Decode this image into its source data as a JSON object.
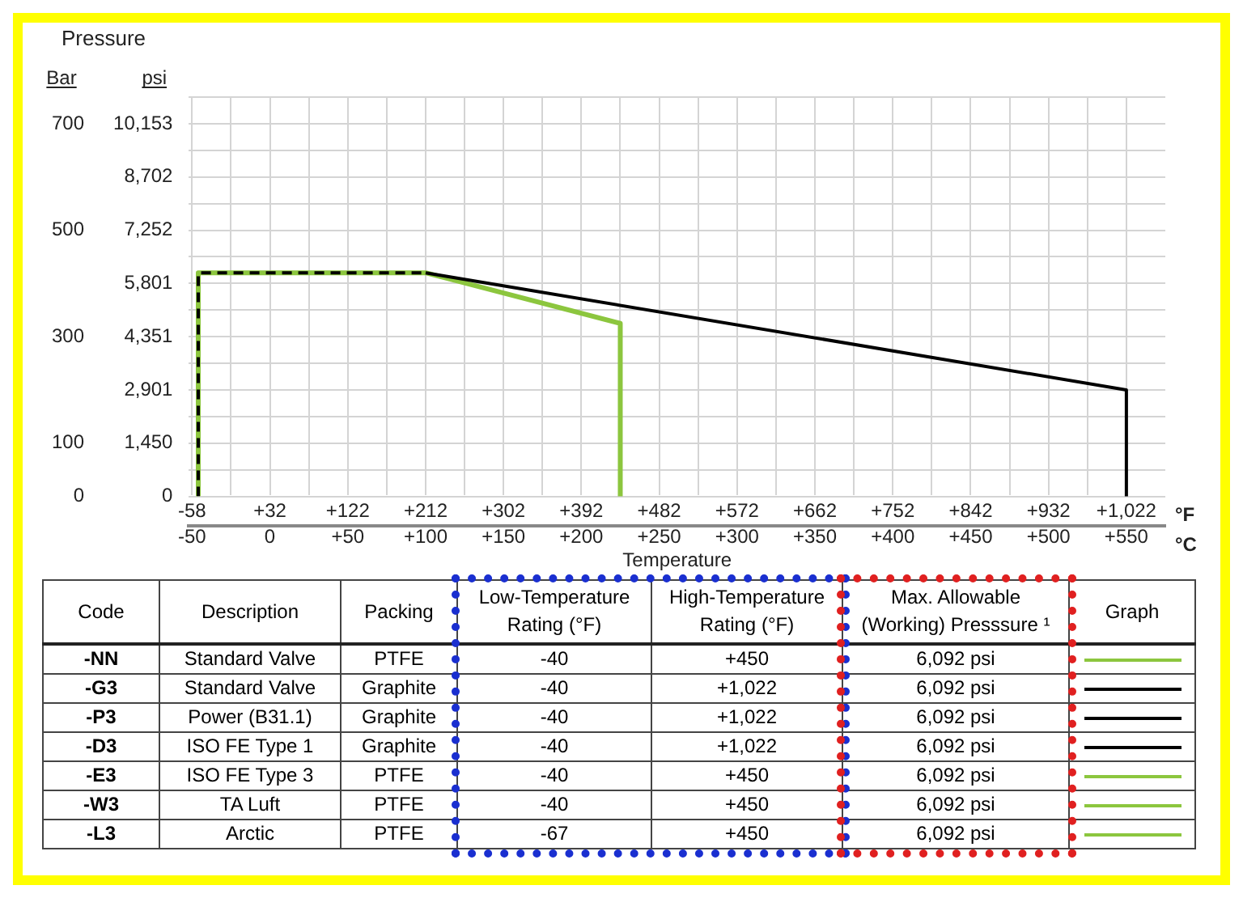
{
  "chart_data": [
    {
      "type": "line",
      "title": "Pressure",
      "ylabel": "Bar",
      "y2label": "psi",
      "xlabel": "Temperature",
      "series": [
        {
          "type": "line",
          "color": "#8cc63e",
          "line_style": "solid",
          "x": [
            -46,
            -46,
            100,
            225,
            225
          ],
          "values": [
            0,
            420,
            420,
            325,
            0
          ]
        },
        {
          "type": "line",
          "color": "#000000",
          "line_style": "dashed",
          "x": [
            -46,
            -46,
            100
          ],
          "values": [
            0,
            420,
            420
          ]
        },
        {
          "type": "line",
          "color": "#000000",
          "line_style": "solid",
          "x": [
            100,
            550,
            550
          ],
          "values": [
            420,
            200,
            0
          ]
        }
      ],
      "marker": "none",
      "grid": true,
      "legend": false,
      "xlim": [
        -52,
        575
      ],
      "xticks": [
        -50,
        {
          "value": -25,
          "label": null
        },
        0,
        {
          "value": 25,
          "label": null
        },
        {
          "value": 50,
          "label": "+50"
        },
        {
          "value": 75,
          "label": null
        },
        {
          "value": 100,
          "label": "+100"
        },
        {
          "value": 125,
          "label": null
        },
        {
          "value": 150,
          "label": "+150"
        },
        {
          "value": 175,
          "label": null
        },
        {
          "value": 200,
          "label": "+200"
        },
        {
          "value": 225,
          "label": null
        },
        {
          "value": 250,
          "label": "+250"
        },
        {
          "value": 275,
          "label": null
        },
        {
          "value": 300,
          "label": "+300"
        },
        {
          "value": 325,
          "label": null
        },
        {
          "value": 350,
          "label": "+350"
        },
        {
          "value": 375,
          "label": null
        },
        {
          "value": 400,
          "label": "+400"
        },
        {
          "value": 425,
          "label": null
        },
        {
          "value": 450,
          "label": "+450"
        },
        {
          "value": 475,
          "label": null
        },
        {
          "value": 500,
          "label": "+500"
        },
        {
          "value": 525,
          "label": null
        },
        {
          "value": 550,
          "label": "+550"
        }
      ],
      "x2lim": [
        -61.6,
        1067
      ],
      "x2ticks": [
        -58,
        {
          "value": 32,
          "label": "+32"
        },
        {
          "value": 122,
          "label": "+122"
        },
        {
          "value": 212,
          "label": "+212"
        },
        {
          "value": 302,
          "label": "+302"
        },
        {
          "value": 392,
          "label": "+392"
        },
        {
          "value": 482,
          "label": "+482"
        },
        {
          "value": 572,
          "label": "+572"
        },
        {
          "value": 662,
          "label": "+662"
        },
        {
          "value": 752,
          "label": "+752"
        },
        {
          "value": 842,
          "label": "+842"
        },
        {
          "value": 932,
          "label": "+932"
        },
        {
          "value": 1022,
          "label": "+1,022"
        }
      ],
      "ylim": [
        0,
        750
      ],
      "yticks": [
        0,
        {
          "value": 50,
          "label": null
        },
        100,
        {
          "value": 150,
          "label": null
        },
        {
          "value": 200,
          "label": null
        },
        {
          "value": 250,
          "label": null
        },
        300,
        {
          "value": 350,
          "label": null
        },
        {
          "value": 400,
          "label": null
        },
        {
          "value": 450,
          "label": null
        },
        500,
        {
          "value": 550,
          "label": null
        },
        {
          "value": 600,
          "label": null
        },
        {
          "value": 650,
          "label": null
        },
        700,
        {
          "value": 750,
          "label": null
        }
      ],
      "y2lim": [
        0,
        10878
      ],
      "y2ticks": [
        0,
        {
          "value": 1450,
          "label": "1,450"
        },
        {
          "value": 2901,
          "label": "2,901"
        },
        {
          "value": 4351,
          "label": "4,351"
        },
        {
          "value": 5801,
          "label": "5,801"
        },
        {
          "value": 7252,
          "label": "7,252"
        },
        {
          "value": 8702,
          "label": "8,702"
        },
        {
          "value": 10153,
          "label": "10,153"
        }
      ],
      "annotations": [
        "°F",
        "°C"
      ]
    },
    {
      "type": "other",
      "categories": [
        "Code",
        "Description",
        "Packing",
        "Low-Temperature Rating (°F)",
        "High-Temperature Rating (°F)",
        "Max. Allowable (Working) Presssure ¹",
        "Graph"
      ],
      "y_categories": [
        "-NN",
        "-G3",
        "-P3",
        "-D3",
        "-E3",
        "-W3",
        "-L3"
      ],
      "cell_labels": [
        [
          "Standard Valve",
          "PTFE",
          "-40",
          "+450",
          "6,092 psi"
        ],
        [
          "Standard Valve",
          "Graphite",
          "-40",
          "+1,022",
          "6,092 psi"
        ],
        [
          "Power (B31.1)",
          "Graphite",
          "-40",
          "+1,022",
          "6,092 psi"
        ],
        [
          "ISO FE Type 1",
          "Graphite",
          "-40",
          "+1,022",
          "6,092 psi"
        ],
        [
          "ISO FE Type 3",
          "PTFE",
          "-40",
          "+450",
          "6,092 psi"
        ],
        [
          "TA Luft",
          "PTFE",
          "-40",
          "+450",
          "6,092 psi"
        ],
        [
          "Arctic",
          "PTFE",
          "-67",
          "+450",
          "6,092 psi"
        ]
      ],
      "colors": [
        "#8cc63e",
        "#000000",
        "#000000",
        "#000000",
        "#8cc63e",
        "#8cc63e",
        "#8cc63e"
      ]
    }
  ]
}
